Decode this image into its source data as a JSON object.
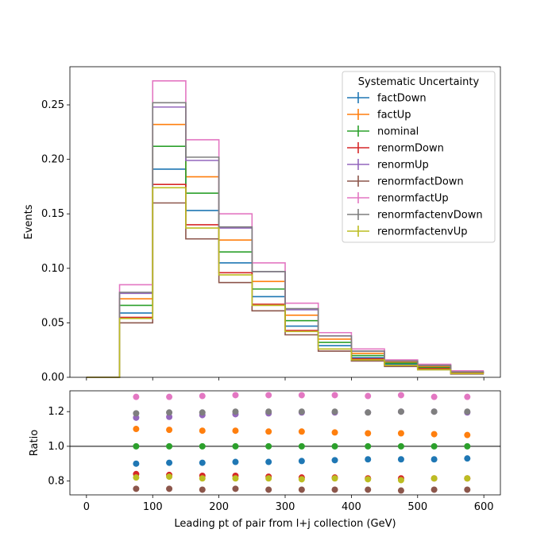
{
  "chart_data": [
    {
      "type": "line",
      "drawstyle": "steps-post",
      "ylabel": "Events",
      "xlim": [
        -25,
        625
      ],
      "ylim": [
        0,
        0.285
      ],
      "yticks": [
        0.0,
        0.05,
        0.1,
        0.15,
        0.2,
        0.25
      ],
      "ytick_labels": [
        "0.00",
        "0.05",
        "0.10",
        "0.15",
        "0.20",
        "0.25"
      ],
      "bin_edges": [
        0,
        50,
        100,
        150,
        200,
        250,
        300,
        350,
        400,
        450,
        500,
        550,
        600
      ],
      "legend": {
        "title": "Systematic Uncertainty",
        "placement": "top-right"
      },
      "series": [
        {
          "name": "factDown",
          "color": "#1f77b4",
          "values": [
            0,
            0.059,
            0.191,
            0.153,
            0.105,
            0.074,
            0.047,
            0.029,
            0.018,
            0.012,
            0.009,
            0.004
          ]
        },
        {
          "name": "factUp",
          "color": "#ff7f0e",
          "values": [
            0,
            0.072,
            0.232,
            0.184,
            0.126,
            0.088,
            0.057,
            0.035,
            0.022,
            0.014,
            0.01,
            0.005
          ]
        },
        {
          "name": "nominal",
          "color": "#2ca02c",
          "values": [
            0,
            0.066,
            0.212,
            0.169,
            0.115,
            0.081,
            0.052,
            0.032,
            0.02,
            0.013,
            0.009,
            0.0045
          ]
        },
        {
          "name": "renormDown",
          "color": "#d62728",
          "values": [
            0,
            0.055,
            0.177,
            0.14,
            0.096,
            0.067,
            0.043,
            0.026,
            0.017,
            0.011,
            0.008,
            0.004
          ]
        },
        {
          "name": "renormUp",
          "color": "#9467bd",
          "values": [
            0,
            0.077,
            0.248,
            0.199,
            0.137,
            0.097,
            0.062,
            0.038,
            0.024,
            0.015,
            0.011,
            0.005
          ]
        },
        {
          "name": "renormfactDown",
          "color": "#8c564b",
          "values": [
            0,
            0.05,
            0.16,
            0.127,
            0.087,
            0.061,
            0.039,
            0.024,
            0.015,
            0.01,
            0.007,
            0.003
          ]
        },
        {
          "name": "renormfactUp",
          "color": "#e377c2",
          "values": [
            0,
            0.085,
            0.272,
            0.218,
            0.15,
            0.105,
            0.068,
            0.041,
            0.026,
            0.016,
            0.012,
            0.006
          ]
        },
        {
          "name": "renormfactenvDown",
          "color": "#7f7f7f",
          "values": [
            0,
            0.078,
            0.252,
            0.202,
            0.138,
            0.097,
            0.063,
            0.038,
            0.024,
            0.015,
            0.011,
            0.005
          ]
        },
        {
          "name": "renormfactenvUp",
          "color": "#bcbd22",
          "values": [
            0,
            0.054,
            0.174,
            0.137,
            0.094,
            0.066,
            0.042,
            0.026,
            0.016,
            0.011,
            0.007,
            0.0035
          ]
        }
      ]
    },
    {
      "type": "scatter",
      "xlabel": "Leading pt of pair from l+j collection (GeV)",
      "ylabel": "Ratio",
      "xlim": [
        -25,
        625
      ],
      "ylim": [
        0.72,
        1.32
      ],
      "xticks": [
        0,
        100,
        200,
        300,
        400,
        500,
        600
      ],
      "xtick_labels": [
        "0",
        "100",
        "200",
        "300",
        "400",
        "500",
        "600"
      ],
      "yticks": [
        0.8,
        1.0,
        1.2
      ],
      "ytick_labels": [
        "0.8",
        "1.0",
        "1.2"
      ],
      "reference_line": 1.0,
      "x": [
        75,
        125,
        175,
        225,
        275,
        325,
        375,
        425,
        475,
        525,
        575
      ],
      "series": [
        {
          "name": "factDown",
          "color": "#1f77b4",
          "values": [
            0.9,
            0.905,
            0.905,
            0.91,
            0.91,
            0.915,
            0.92,
            0.925,
            0.925,
            0.925,
            0.93
          ]
        },
        {
          "name": "factUp",
          "color": "#ff7f0e",
          "values": [
            1.1,
            1.095,
            1.09,
            1.09,
            1.085,
            1.085,
            1.08,
            1.075,
            1.075,
            1.07,
            1.065
          ]
        },
        {
          "name": "nominal",
          "color": "#2ca02c",
          "values": [
            1.0,
            1.0,
            1.0,
            1.0,
            1.0,
            1.0,
            1.0,
            1.0,
            1.0,
            1.0,
            1.0
          ]
        },
        {
          "name": "renormDown",
          "color": "#d62728",
          "values": [
            0.84,
            0.835,
            0.83,
            0.83,
            0.825,
            0.82,
            0.82,
            0.815,
            0.815,
            0.815,
            0.815
          ]
        },
        {
          "name": "renormUp",
          "color": "#9467bd",
          "values": [
            1.165,
            1.17,
            1.18,
            1.185,
            1.19,
            1.195,
            1.195,
            1.195,
            1.2,
            1.2,
            1.195
          ]
        },
        {
          "name": "renormfactDown",
          "color": "#8c564b",
          "values": [
            0.755,
            0.755,
            0.75,
            0.755,
            0.75,
            0.75,
            0.75,
            0.75,
            0.745,
            0.75,
            0.75
          ]
        },
        {
          "name": "renormfactUp",
          "color": "#e377c2",
          "values": [
            1.285,
            1.285,
            1.29,
            1.295,
            1.295,
            1.295,
            1.295,
            1.29,
            1.295,
            1.285,
            1.285
          ]
        },
        {
          "name": "renormfactenvDown",
          "color": "#7f7f7f",
          "values": [
            1.19,
            1.195,
            1.195,
            1.2,
            1.2,
            1.2,
            1.2,
            1.195,
            1.2,
            1.2,
            1.2
          ]
        },
        {
          "name": "renormfactenvUp",
          "color": "#bcbd22",
          "values": [
            0.82,
            0.825,
            0.815,
            0.815,
            0.815,
            0.81,
            0.815,
            0.81,
            0.805,
            0.815,
            0.815
          ]
        }
      ]
    }
  ]
}
